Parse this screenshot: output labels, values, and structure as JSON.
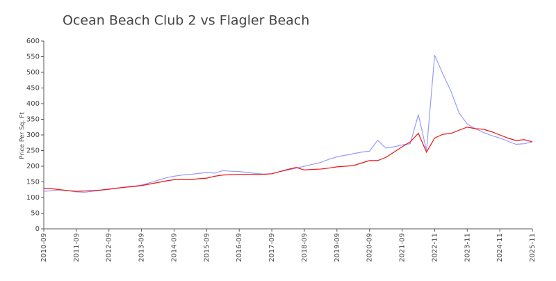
{
  "chart_data": {
    "type": "line",
    "title": "Ocean Beach Club 2 vs Flagler Beach",
    "y_label": "Price Per Sq. Ft",
    "categories": [
      "2010-09",
      null,
      null,
      null,
      "2011-09",
      null,
      null,
      null,
      "2012-09",
      null,
      null,
      null,
      "2013-09",
      null,
      null,
      null,
      "2014-09",
      null,
      null,
      null,
      "2015-09",
      null,
      null,
      null,
      "2016-09",
      null,
      null,
      null,
      "2017-09",
      null,
      null,
      null,
      "2018-09",
      null,
      null,
      null,
      "2019-09",
      null,
      null,
      null,
      "2020-09",
      null,
      null,
      null,
      "2021-09",
      null,
      null,
      null,
      "2022-11",
      null,
      null,
      null,
      "2023-11",
      null,
      null,
      null,
      "2024-11",
      null,
      null,
      null,
      "2025-11"
    ],
    "series": [
      {
        "color": "#9999ff",
        "values": [
          120,
          122,
          124,
          122,
          118,
          117,
          120,
          123,
          126,
          130,
          133,
          136,
          140,
          147,
          155,
          163,
          168,
          172,
          174,
          177,
          180,
          178,
          186,
          184,
          183,
          180,
          177,
          175,
          176,
          183,
          188,
          194,
          200,
          206,
          212,
          222,
          230,
          235,
          240,
          245,
          248,
          283,
          258,
          262,
          268,
          272,
          365,
          250,
          555,
          495,
          440,
          370,
          335,
          320,
          308,
          298,
          290,
          280,
          270,
          272,
          278
        ]
      },
      {
        "color": "#ee1111",
        "values": [
          130,
          128,
          125,
          122,
          120,
          121,
          122,
          124,
          127,
          130,
          133,
          135,
          138,
          143,
          148,
          153,
          157,
          158,
          157,
          160,
          162,
          168,
          172,
          173,
          174,
          174,
          174,
          174,
          176,
          183,
          190,
          196,
          188,
          190,
          191,
          194,
          198,
          200,
          202,
          210,
          218,
          218,
          228,
          245,
          262,
          278,
          305,
          245,
          290,
          302,
          305,
          315,
          325,
          320,
          318,
          310,
          300,
          290,
          282,
          285,
          278
        ]
      }
    ],
    "ylim": [
      0,
      600
    ],
    "yticks": [
      0,
      50,
      100,
      150,
      200,
      250,
      300,
      350,
      400,
      450,
      500,
      550,
      600
    ]
  }
}
